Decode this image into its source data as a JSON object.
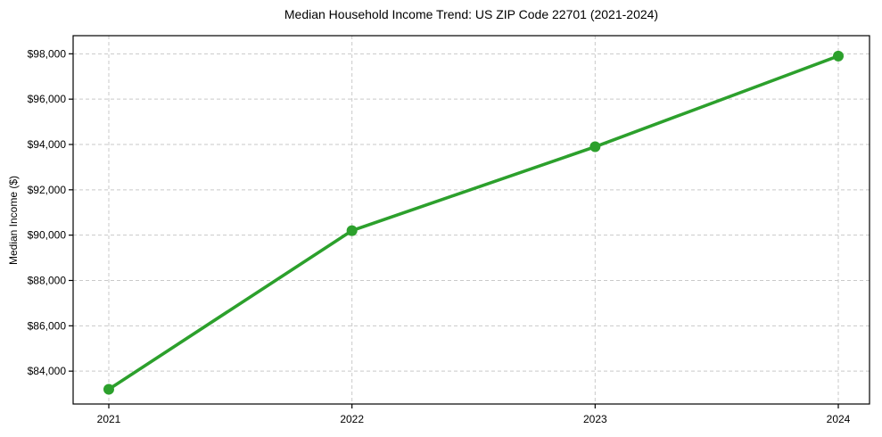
{
  "figure": {
    "background": "#ffffff"
  },
  "chart_data": {
    "type": "line",
    "title": "Median Household Income Trend: US ZIP Code 22701 (2021-2024)",
    "xlabel": "",
    "ylabel": "Median Income ($)",
    "categories": [
      "2021",
      "2022",
      "2023",
      "2024"
    ],
    "series": [
      {
        "name": "Median Household Income",
        "values": [
          83200,
          90200,
          93900,
          97900
        ]
      }
    ],
    "ylim": [
      82550,
      98800
    ],
    "yticks": [
      84000,
      86000,
      88000,
      90000,
      92000,
      94000,
      96000,
      98000
    ],
    "ytick_labels": [
      "$84,000",
      "$86,000",
      "$88,000",
      "$90,000",
      "$92,000",
      "$94,000",
      "$96,000",
      "$98,000"
    ],
    "grid": true,
    "grid_style": "dashed",
    "legend": "none",
    "line_color": "#2ca02c",
    "marker": "circle",
    "marker_color": "#2ca02c",
    "grid_color": "#c9c9c9",
    "axis_color": "#000000",
    "text_color": "#000000"
  }
}
